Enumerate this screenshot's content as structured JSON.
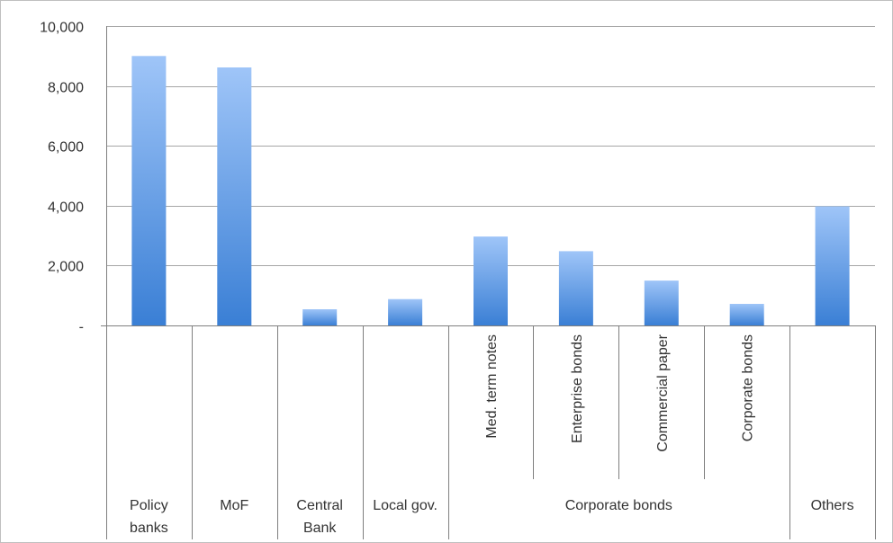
{
  "chart_data": {
    "type": "bar",
    "ylim": [
      0,
      10000
    ],
    "y_ticks": [
      {
        "value": 0,
        "label": "-"
      },
      {
        "value": 2000,
        "label": "2,000"
      },
      {
        "value": 4000,
        "label": "4,000"
      },
      {
        "value": 6000,
        "label": "6,000"
      },
      {
        "value": 8000,
        "label": "8,000"
      },
      {
        "value": 10000,
        "label": "10,000"
      }
    ],
    "grid": true,
    "categories": [
      {
        "label": "Policy\nbanks",
        "subcategory": "",
        "value": 9000
      },
      {
        "label": "MoF",
        "subcategory": "",
        "value": 8620
      },
      {
        "label": "Central\nBank",
        "subcategory": "",
        "value": 540
      },
      {
        "label": "Local gov.",
        "subcategory": "",
        "value": 880
      },
      {
        "label": "Corporate bonds",
        "subcategory": "Med. term notes",
        "value": 2970
      },
      {
        "label": "Corporate bonds",
        "subcategory": "Enterprise bonds",
        "value": 2480
      },
      {
        "label": "Corporate bonds",
        "subcategory": "Commercial paper",
        "value": 1500
      },
      {
        "label": "Corporate bonds",
        "subcategory": "Corporate bonds",
        "value": 720
      },
      {
        "label": "Others",
        "subcategory": "",
        "value": 3980
      }
    ],
    "colors": {
      "bar_top": "#9fc5f8",
      "bar_bottom": "#3a7fd5",
      "grid": "#a6a6a6",
      "axis": "#7f7f7f",
      "frame": "#bfbfbf"
    }
  }
}
